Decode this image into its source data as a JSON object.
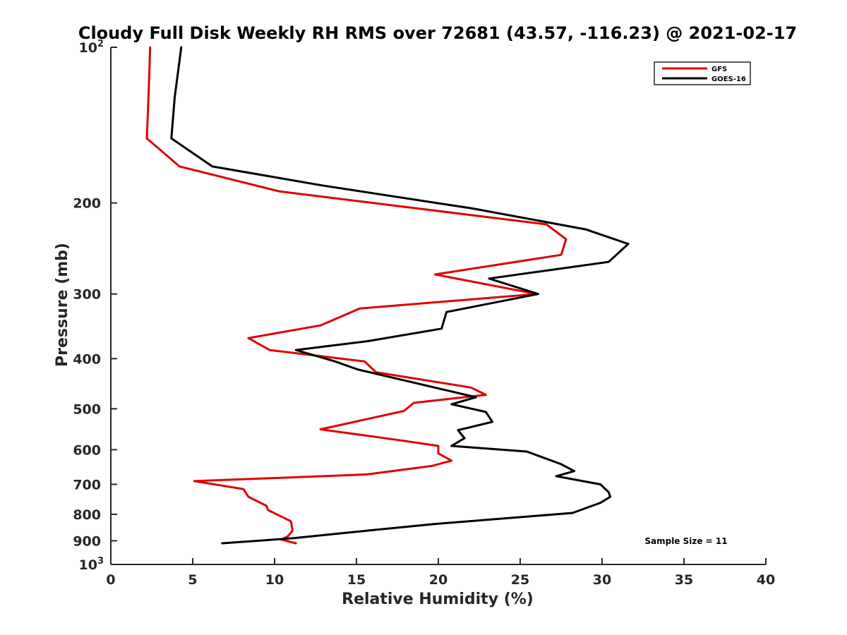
{
  "chart_data": {
    "type": "line",
    "title": "Cloudy Full Disk Weekly RH RMS over 72681 (43.57, -116.23) @ 2021-02-17",
    "xlabel": "Relative Humidity (%)",
    "ylabel": "Pressure (mb)",
    "xlim": [
      0,
      40
    ],
    "ylim": [
      100,
      1000
    ],
    "y_scale": "log",
    "y_reversed": true,
    "grid": false,
    "legend_position": "top-right",
    "x_ticks": [
      "0",
      "5",
      "10",
      "15",
      "20",
      "25",
      "30",
      "35",
      "40"
    ],
    "y_ticks": [
      {
        "value": 100,
        "base": "10",
        "exp": "2"
      },
      {
        "value": 200,
        "label": "200"
      },
      {
        "value": 300,
        "label": "300"
      },
      {
        "value": 400,
        "label": "400"
      },
      {
        "value": 500,
        "label": "500"
      },
      {
        "value": 600,
        "label": "600"
      },
      {
        "value": 700,
        "label": "700"
      },
      {
        "value": 800,
        "label": "800"
      },
      {
        "value": 900,
        "label": "900"
      },
      {
        "value": 1000,
        "base": "10",
        "exp": "3"
      }
    ],
    "series": [
      {
        "name": "GFS",
        "color": "#e00000",
        "points": [
          [
            2.4,
            100
          ],
          [
            2.3,
            125
          ],
          [
            2.2,
            150
          ],
          [
            4.2,
            170
          ],
          [
            10.3,
            190
          ],
          [
            26.6,
            220
          ],
          [
            27.8,
            235
          ],
          [
            27.5,
            252
          ],
          [
            19.8,
            275
          ],
          [
            26.0,
            300
          ],
          [
            15.2,
            320
          ],
          [
            12.8,
            345
          ],
          [
            8.4,
            365
          ],
          [
            9.7,
            385
          ],
          [
            15.5,
            405
          ],
          [
            16.2,
            425
          ],
          [
            22.0,
            455
          ],
          [
            22.9,
            470
          ],
          [
            18.5,
            487
          ],
          [
            17.9,
            505
          ],
          [
            12.8,
            548
          ],
          [
            17.6,
            575
          ],
          [
            20.0,
            590
          ],
          [
            20.0,
            610
          ],
          [
            20.8,
            630
          ],
          [
            19.6,
            645
          ],
          [
            15.6,
            670
          ],
          [
            5.1,
            690
          ],
          [
            8.1,
            715
          ],
          [
            8.4,
            740
          ],
          [
            9.5,
            770
          ],
          [
            9.6,
            785
          ],
          [
            11.0,
            825
          ],
          [
            11.1,
            860
          ],
          [
            10.8,
            883
          ],
          [
            10.4,
            895
          ],
          [
            11.3,
            910
          ]
        ]
      },
      {
        "name": "GOES-16",
        "color": "#000000",
        "points": [
          [
            4.3,
            100
          ],
          [
            3.9,
            125
          ],
          [
            3.7,
            150
          ],
          [
            6.2,
            170
          ],
          [
            12.9,
            185
          ],
          [
            22.1,
            205
          ],
          [
            29.0,
            225
          ],
          [
            31.6,
            240
          ],
          [
            30.4,
            260
          ],
          [
            23.1,
            280
          ],
          [
            26.1,
            300
          ],
          [
            20.5,
            325
          ],
          [
            20.2,
            350
          ],
          [
            15.7,
            370
          ],
          [
            11.3,
            385
          ],
          [
            13.7,
            405
          ],
          [
            15.1,
            420
          ],
          [
            22.3,
            475
          ],
          [
            20.8,
            490
          ],
          [
            22.9,
            507
          ],
          [
            23.3,
            530
          ],
          [
            21.2,
            550
          ],
          [
            21.6,
            570
          ],
          [
            20.8,
            590
          ],
          [
            25.4,
            605
          ],
          [
            27.5,
            640
          ],
          [
            28.3,
            660
          ],
          [
            27.2,
            675
          ],
          [
            29.9,
            700
          ],
          [
            30.4,
            725
          ],
          [
            30.5,
            740
          ],
          [
            29.9,
            760
          ],
          [
            28.2,
            795
          ],
          [
            19.8,
            835
          ],
          [
            15.7,
            860
          ],
          [
            11.1,
            890
          ],
          [
            6.8,
            910
          ]
        ]
      }
    ],
    "annotations": [
      "Sample Size = 11"
    ]
  }
}
